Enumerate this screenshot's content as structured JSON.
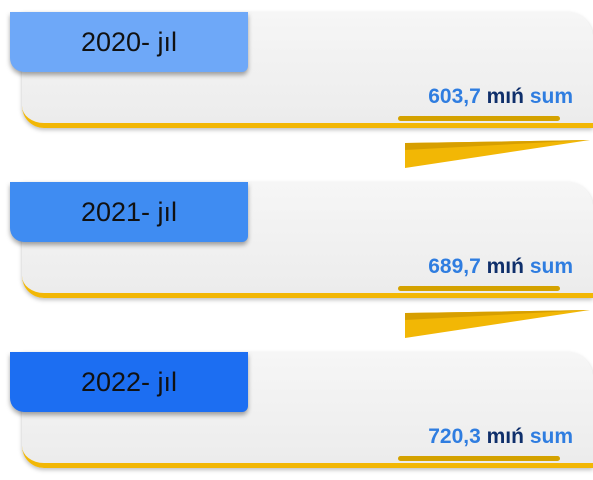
{
  "items": [
    {
      "year": "2020- jıl",
      "value": "603,7",
      "unit": "mıń",
      "currency": "sum"
    },
    {
      "year": "2021- jıl",
      "value": "689,7",
      "unit": "mıń",
      "currency": "sum"
    },
    {
      "year": "2022- jıl",
      "value": "720,3",
      "unit": "mıń",
      "currency": "sum"
    }
  ]
}
